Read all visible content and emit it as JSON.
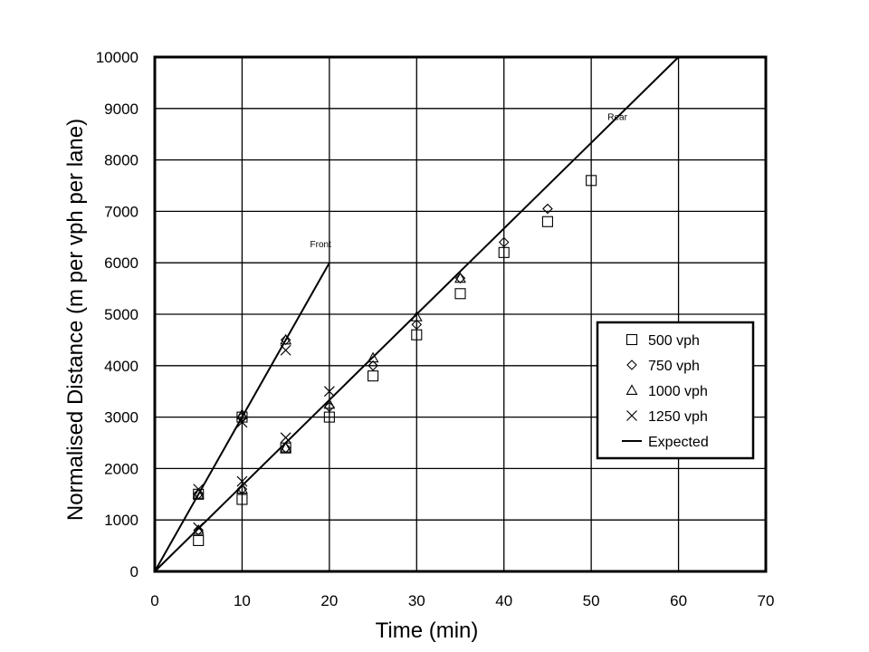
{
  "chart_data": {
    "type": "scatter",
    "title": "",
    "xlabel": "Time (min)",
    "ylabel": "Normalised Distance (m  per  vph  per  lane)",
    "xlim": [
      0,
      70
    ],
    "ylim": [
      0,
      10000
    ],
    "xticks": [
      0,
      10,
      20,
      30,
      40,
      50,
      60,
      70
    ],
    "yticks": [
      0,
      1000,
      2000,
      3000,
      4000,
      5000,
      6000,
      7000,
      8000,
      9000,
      10000
    ],
    "grid": true,
    "legend_position": "right",
    "series": [
      {
        "name": "500 vph",
        "marker": "square",
        "points": [
          [
            5,
            600
          ],
          [
            10,
            1400
          ],
          [
            15,
            2400
          ],
          [
            20,
            3000
          ],
          [
            25,
            3800
          ],
          [
            30,
            4600
          ],
          [
            35,
            5400
          ],
          [
            40,
            6200
          ],
          [
            45,
            6800
          ],
          [
            50,
            7600
          ],
          [
            5,
            1500
          ],
          [
            10,
            3000
          ]
        ]
      },
      {
        "name": "750 vph",
        "marker": "diamond",
        "points": [
          [
            5,
            800
          ],
          [
            10,
            1600
          ],
          [
            15,
            2400
          ],
          [
            20,
            3200
          ],
          [
            25,
            4000
          ],
          [
            30,
            4800
          ],
          [
            35,
            5700
          ],
          [
            40,
            6400
          ],
          [
            45,
            7050
          ],
          [
            5,
            1500
          ],
          [
            10,
            3000
          ],
          [
            15,
            4500
          ]
        ]
      },
      {
        "name": "1000 vph",
        "marker": "triangle",
        "points": [
          [
            5,
            800
          ],
          [
            10,
            1600
          ],
          [
            15,
            2400
          ],
          [
            20,
            3250
          ],
          [
            25,
            4150
          ],
          [
            30,
            4950
          ],
          [
            35,
            5700
          ],
          [
            5,
            1500
          ],
          [
            10,
            3050
          ],
          [
            15,
            4500
          ]
        ]
      },
      {
        "name": "1250 vph",
        "marker": "x",
        "points": [
          [
            5,
            850
          ],
          [
            10,
            1750
          ],
          [
            15,
            2600
          ],
          [
            20,
            3500
          ],
          [
            5,
            1600
          ],
          [
            10,
            2900
          ],
          [
            15,
            4300
          ]
        ]
      }
    ],
    "lines": [
      {
        "name": "Expected",
        "label": "Front",
        "points": [
          [
            0,
            0
          ],
          [
            20,
            6000
          ]
        ]
      },
      {
        "name": "Expected",
        "label": "Rear",
        "points": [
          [
            0,
            0
          ],
          [
            60,
            10000
          ]
        ]
      }
    ],
    "annotations": [
      {
        "text": "Front",
        "x": 19,
        "y": 6300
      },
      {
        "text": "Rear",
        "x": 53,
        "y": 8780
      }
    ],
    "legend": {
      "entries": [
        {
          "label": "500 vph",
          "marker": "square"
        },
        {
          "label": "750 vph",
          "marker": "diamond"
        },
        {
          "label": "1000 vph",
          "marker": "triangle"
        },
        {
          "label": "1250 vph",
          "marker": "x"
        },
        {
          "label": "Expected",
          "marker": "line"
        }
      ]
    },
    "colors": {
      "ink": "#000000",
      "grid": "#000000",
      "background": "#ffffff"
    }
  }
}
